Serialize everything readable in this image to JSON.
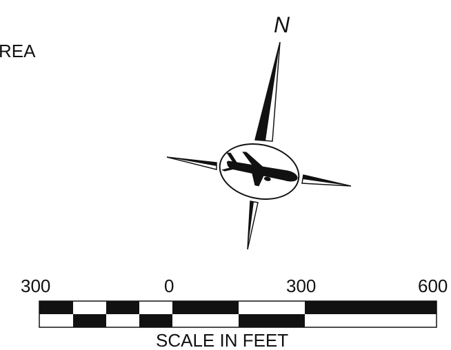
{
  "map": {
    "area_label_fragment": "REA",
    "north_label": "N"
  },
  "compass": {
    "center_icon": "airplane-icon"
  },
  "scale_bar": {
    "tick_labels": [
      "300",
      "0",
      "300",
      "600"
    ],
    "caption": "SCALE IN FEET"
  },
  "colors": {
    "ink": "#111111",
    "background": "#ffffff"
  }
}
